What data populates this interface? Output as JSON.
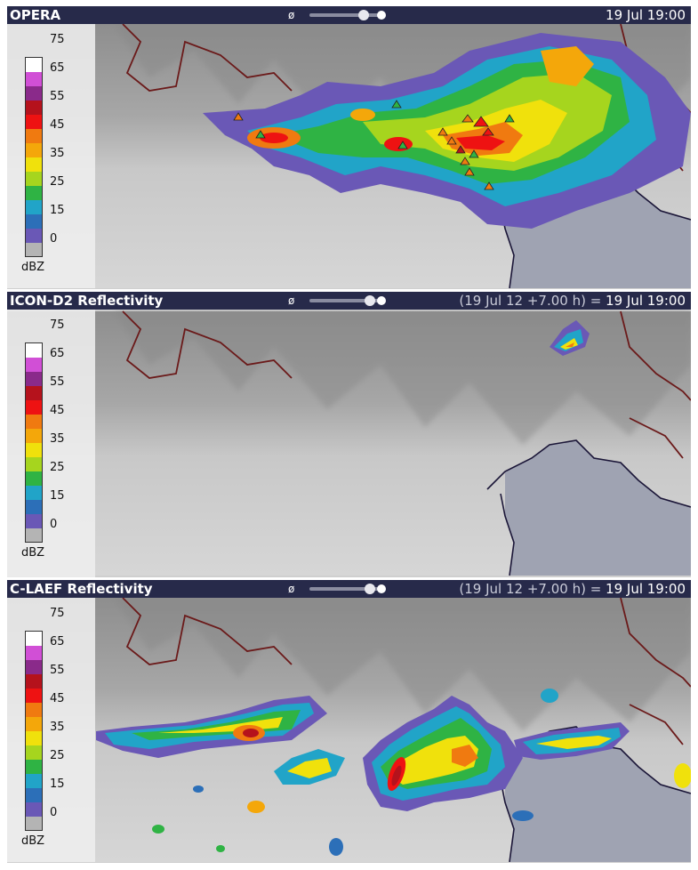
{
  "panels": [
    {
      "title": "OPERA",
      "time_dim": "",
      "time": "19 Jul 19:00",
      "slider_value": 0.9
    },
    {
      "title": "ICON-D2 Reflectivity",
      "time_dim": "(19 Jul 12 +7.00 h) = ",
      "time": "19 Jul 19:00",
      "slider_value": 1.0
    },
    {
      "title": "C-LAEF Reflectivity",
      "time_dim": "(19 Jul 12 +7.00 h) = ",
      "time": "19 Jul 19:00",
      "slider_value": 1.0
    }
  ],
  "slider": {
    "symbol": "ø"
  },
  "legend": {
    "unit": "dBZ",
    "labels": [
      "75",
      "65",
      "55",
      "45",
      "35",
      "25",
      "15",
      "0"
    ],
    "colors": [
      "#ffffff",
      "#d14fd6",
      "#8a2a8a",
      "#b5121c",
      "#ee1212",
      "#f07a10",
      "#f4a70a",
      "#f0e10c",
      "#a6d51e",
      "#2fb344",
      "#21a4c8",
      "#2c6fb8",
      "#6a58b6",
      "#b4b4b4"
    ]
  },
  "colors": {
    "header": "#272a4a",
    "sea": "#9fa3b2",
    "coast": "#1b1638",
    "border": "#6b1a1a"
  }
}
